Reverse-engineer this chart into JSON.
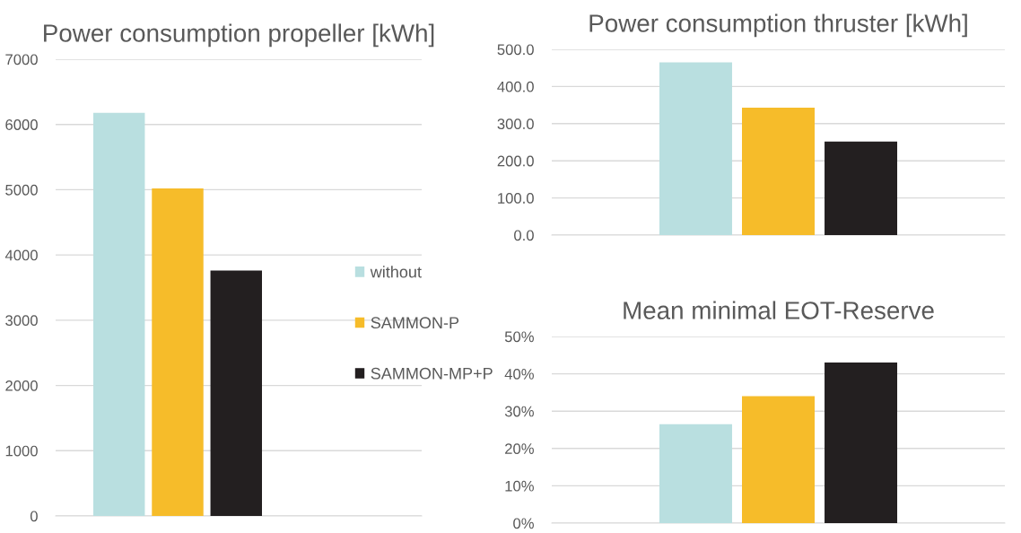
{
  "chart_data": [
    {
      "type": "bar",
      "title": "Power consumption propeller [kWh]",
      "categories": [
        null
      ],
      "series": [
        {
          "name": "without",
          "color": "#b9dfe0",
          "values": [
            6180
          ]
        },
        {
          "name": "SAMMON-P",
          "color": "#f6bc2a",
          "values": [
            5020
          ]
        },
        {
          "name": "SAMMON-MP+P",
          "color": "#231f20",
          "values": [
            3760
          ]
        }
      ],
      "ylim": [
        0,
        7000
      ],
      "yticks": [
        0,
        1000,
        2000,
        3000,
        4000,
        5000,
        6000,
        7000
      ],
      "grid": "y",
      "legend": "right"
    },
    {
      "type": "bar",
      "title": "Power consumption thruster [kWh]",
      "categories": [
        null
      ],
      "series": [
        {
          "color": "#b9dfe0",
          "values": [
            465
          ]
        },
        {
          "color": "#f6bc2a",
          "values": [
            343
          ]
        },
        {
          "color": "#231f20",
          "values": [
            252
          ]
        }
      ],
      "ylim": [
        0,
        500
      ],
      "yticks": [
        {
          "value": 0,
          "label": "0.0"
        },
        {
          "value": 100,
          "label": "100.0"
        },
        {
          "value": 200,
          "label": "200.0"
        },
        {
          "value": 300,
          "label": "300.0"
        },
        {
          "value": 400,
          "label": "400.0"
        },
        {
          "value": 500,
          "label": "500.0"
        }
      ],
      "grid": "y"
    },
    {
      "type": "bar",
      "title": "Mean minimal EOT-Reserve",
      "categories": [
        null
      ],
      "series": [
        {
          "color": "#b9dfe0",
          "values": [
            26.5
          ]
        },
        {
          "color": "#f6bc2a",
          "values": [
            34
          ]
        },
        {
          "color": "#231f20",
          "values": [
            43
          ]
        }
      ],
      "ylim": [
        0,
        50
      ],
      "yticks": [
        {
          "value": 0,
          "label": "0%"
        },
        {
          "value": 10,
          "label": "10%"
        },
        {
          "value": 20,
          "label": "20%"
        },
        {
          "value": 30,
          "label": "30%"
        },
        {
          "value": 40,
          "label": "40%"
        },
        {
          "value": 50,
          "label": "50%"
        }
      ],
      "grid": "y"
    }
  ]
}
